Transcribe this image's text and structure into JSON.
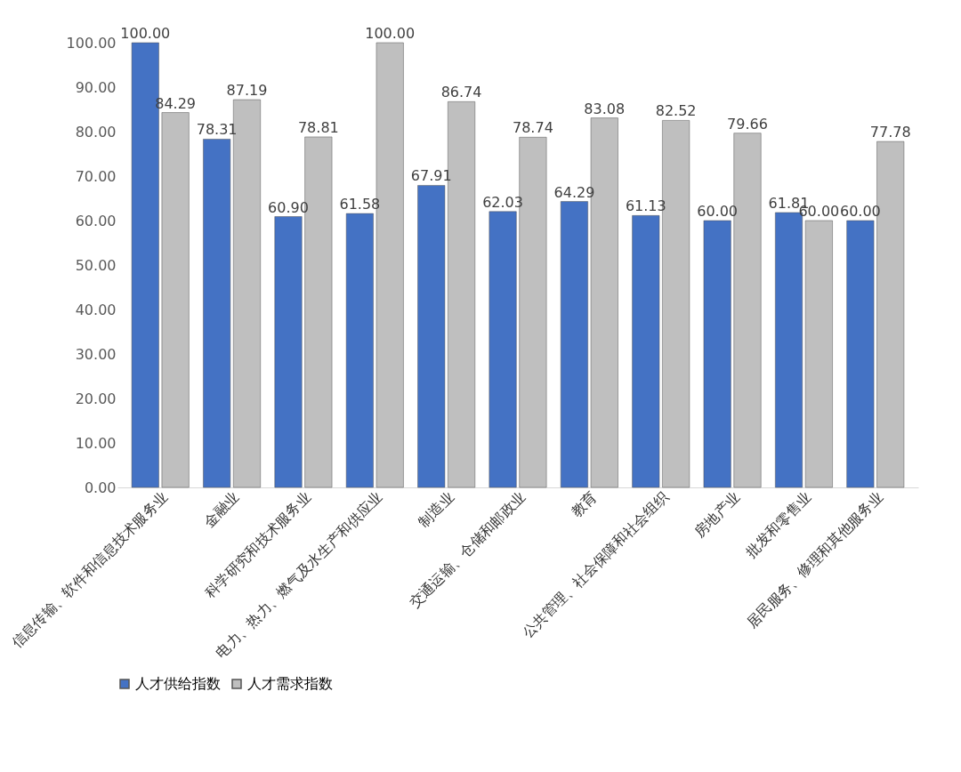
{
  "chart_data": {
    "type": "bar",
    "categories": [
      "信息传输、软件和信息技术服务业",
      "金融业",
      "科学研究和技术服务业",
      "电力、热力、燃气及水生产和供应业",
      "制造业",
      "交通运输、仓储和邮政业",
      "教育",
      "公共管理、社会保障和社会组织",
      "房地产业",
      "批发和零售业",
      "居民服务、修理和其他服务业"
    ],
    "series": [
      {
        "name": "人才供给指数",
        "color": "#4472c4",
        "values": [
          100,
          78.31,
          60.9,
          61.58,
          67.91,
          62.03,
          64.29,
          61.13,
          60.0,
          61.81,
          60.0
        ],
        "value_labels": [
          "100.00",
          "78.31",
          "60.90",
          "61.58",
          "67.91",
          "62.03",
          "64.29",
          "61.13",
          "60.00",
          "61.81",
          "60.00"
        ]
      },
      {
        "name": "人才需求指数",
        "color": "#bfbfbf",
        "values": [
          84.29,
          87.19,
          78.81,
          100,
          86.74,
          78.74,
          83.08,
          82.52,
          79.66,
          60.0,
          77.78
        ],
        "value_labels": [
          "84.29",
          "87.19",
          "78.81",
          "100.00",
          "86.74",
          "78.74",
          "83.08",
          "82.52",
          "79.66",
          "60.00",
          "77.78"
        ]
      }
    ],
    "ylim": [
      0,
      100
    ],
    "yticks": [
      {
        "value": 0,
        "label": "0.00"
      },
      {
        "value": 10,
        "label": "10.00"
      },
      {
        "value": 20,
        "label": "20.00"
      },
      {
        "value": 30,
        "label": "30.00"
      },
      {
        "value": 40,
        "label": "40.00"
      },
      {
        "value": 50,
        "label": "50.00"
      },
      {
        "value": 60,
        "label": "60.00"
      },
      {
        "value": 70,
        "label": "70.00"
      },
      {
        "value": 80,
        "label": "80.00"
      },
      {
        "value": 90,
        "label": "90.00"
      },
      {
        "value": 100,
        "label": "100.00"
      }
    ],
    "grid": false,
    "legend": "bottom"
  }
}
